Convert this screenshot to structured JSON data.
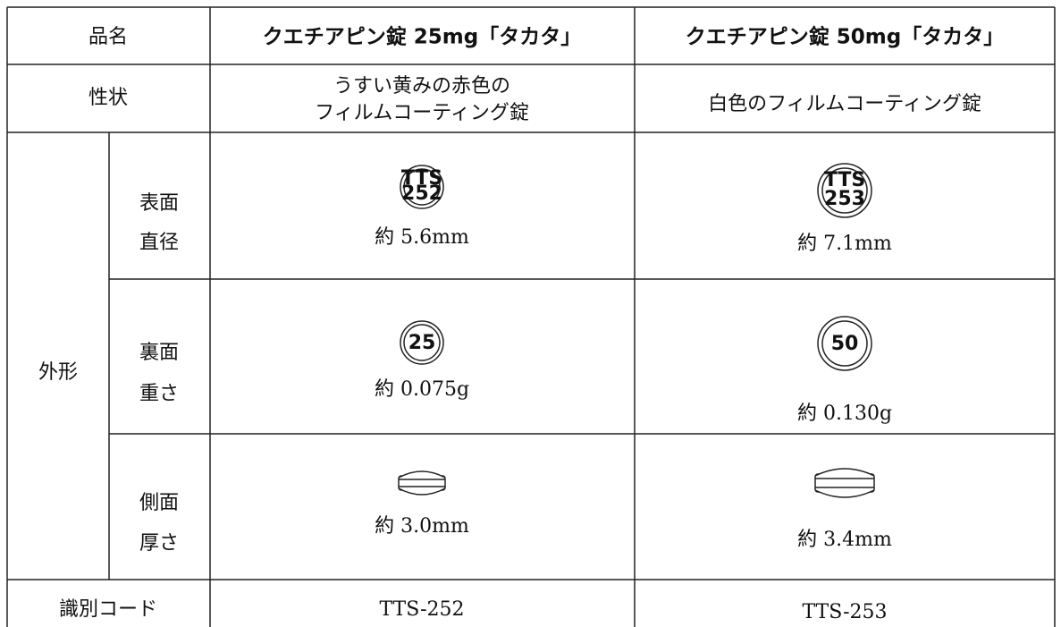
{
  "table": {
    "header": [
      "品名",
      "クエチアピン錠 25mg「タカタ」",
      "クエチアピン錠 50mg「タカタ」"
    ],
    "appearance_row": {
      "label": "性状",
      "values": [
        [
          "うすい黄みの赤色の",
          "フィルムコーティング錠"
        ],
        "白色のフィルムコーティング錠"
      ]
    },
    "shape_label": "外形",
    "front": {
      "labels": [
        "表面",
        "直径"
      ],
      "imprints": [
        [
          "TTS",
          "252"
        ],
        [
          "TTS",
          "253"
        ]
      ],
      "values": [
        "約 5.6mm",
        "約 7.1mm"
      ]
    },
    "back": {
      "labels": [
        "裏面",
        "重さ"
      ],
      "imprints": [
        "25",
        "50"
      ],
      "values": [
        "約 0.075g",
        "約 0.130g"
      ]
    },
    "side": {
      "labels": [
        "側面",
        "厚さ"
      ],
      "values": [
        "約 3.0mm",
        "約 3.4mm"
      ]
    },
    "code_row": {
      "label": "識別コード",
      "values": [
        "TTS-252",
        "TTS-253"
      ]
    }
  }
}
